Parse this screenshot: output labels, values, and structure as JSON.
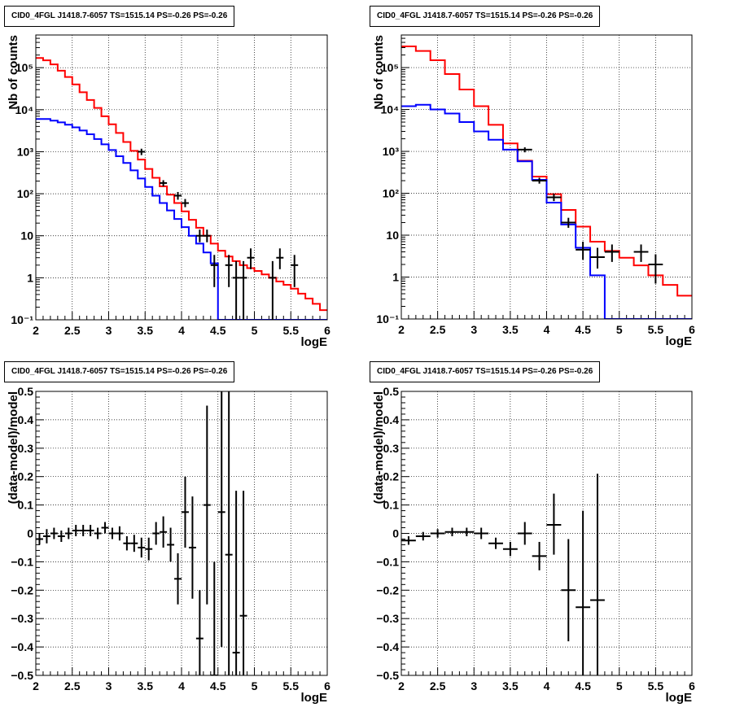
{
  "chart_data": [
    {
      "type": "step-histogram-with-errorbars",
      "title": "CID0_4FGL J1418.7-6057 TS=1515.14 PS=-0.26 PS=-0.26",
      "xlabel": "logE",
      "ylabel": "Nb of counts",
      "xlim": [
        2,
        6
      ],
      "ylim": [
        0.1,
        600000
      ],
      "yscale": "log",
      "grid": true,
      "xticks": [
        "2",
        "2.5",
        "3",
        "3.5",
        "4",
        "4.5",
        "5",
        "5.5",
        "6"
      ],
      "yticks": [
        {
          "v": 0.1,
          "l": "10⁻¹"
        },
        {
          "v": 1,
          "l": "1"
        },
        {
          "v": 10,
          "l": "10"
        },
        {
          "v": 100,
          "l": "10²"
        },
        {
          "v": 1000,
          "l": "10³"
        },
        {
          "v": 10000,
          "l": "10⁴"
        },
        {
          "v": 100000,
          "l": "10⁵"
        }
      ],
      "bin_edges": [
        2.0,
        2.1,
        2.2,
        2.3,
        2.4,
        2.5,
        2.6,
        2.7,
        2.8,
        2.9,
        3.0,
        3.1,
        3.2,
        3.3,
        3.4,
        3.5,
        3.6,
        3.7,
        3.8,
        3.9,
        4.0,
        4.1,
        4.2,
        4.3,
        4.4,
        4.5,
        4.6,
        4.7,
        4.8,
        4.9,
        5.0,
        5.1,
        5.2,
        5.3,
        5.4,
        5.5,
        5.6,
        5.7,
        5.8,
        5.9,
        6.0
      ],
      "series": [
        {
          "color": "#ff0000",
          "values": [
            170000,
            150000,
            120000,
            85000,
            60000,
            40000,
            26000,
            17000,
            11000,
            7000,
            4500,
            2800,
            1700,
            1050,
            650,
            390,
            240,
            150,
            95,
            60,
            38,
            24,
            15.5,
            10,
            6.5,
            4.4,
            3.2,
            2.5,
            2.0,
            1.7,
            1.45,
            1.2,
            1.0,
            0.82,
            0.68,
            0.55,
            0.42,
            0.32,
            0.24,
            0.17
          ]
        },
        {
          "color": "#0000ff",
          "values": [
            6000,
            6000,
            5500,
            5000,
            4400,
            3800,
            3200,
            2600,
            2000,
            1500,
            1100,
            780,
            540,
            360,
            230,
            145,
            90,
            60,
            40,
            25,
            16,
            10,
            6.5,
            4,
            2.2,
            0.05,
            0.05,
            0.05,
            0.05,
            0.05,
            0.05,
            0.05,
            0.05,
            0.05,
            0.05,
            0.05,
            0.05,
            0.05,
            0.05,
            0.05
          ]
        }
      ],
      "points": [
        {
          "x": 3.45,
          "y": 1000,
          "lo": 830,
          "hi": 1180
        },
        {
          "x": 3.75,
          "y": 180,
          "lo": 150,
          "hi": 210
        },
        {
          "x": 3.95,
          "y": 90,
          "lo": 72,
          "hi": 110
        },
        {
          "x": 4.05,
          "y": 60,
          "lo": 48,
          "hi": 75
        },
        {
          "x": 4.25,
          "y": 10,
          "lo": 7,
          "hi": 14
        },
        {
          "x": 4.35,
          "y": 10,
          "lo": 7,
          "hi": 14
        },
        {
          "x": 4.45,
          "y": 2,
          "lo": 0.6,
          "hi": 3.5
        },
        {
          "x": 4.65,
          "y": 2,
          "lo": 0.6,
          "hi": 3.5
        },
        {
          "x": 4.75,
          "y": 1,
          "lo": 0.05,
          "hi": 2.5
        },
        {
          "x": 4.85,
          "y": 1,
          "lo": 0.05,
          "hi": 2.5
        },
        {
          "x": 4.95,
          "y": 3,
          "lo": 1.6,
          "hi": 5
        },
        {
          "x": 5.25,
          "y": 1,
          "lo": 0.05,
          "hi": 2.5
        },
        {
          "x": 5.35,
          "y": 3,
          "lo": 1.6,
          "hi": 5
        },
        {
          "x": 5.55,
          "y": 2,
          "lo": 0.6,
          "hi": 3.5
        }
      ],
      "point_halfwidth": 0.05
    },
    {
      "type": "step-histogram-with-errorbars",
      "title": "CID0_4FGL J1418.7-6057 TS=1515.14 PS=-0.26 PS=-0.26",
      "xlabel": "logE",
      "ylabel": "Nb of counts",
      "xlim": [
        2,
        6
      ],
      "ylim": [
        0.1,
        600000
      ],
      "yscale": "log",
      "grid": true,
      "xticks": [
        "2",
        "2.5",
        "3",
        "3.5",
        "4",
        "4.5",
        "5",
        "5.5",
        "6"
      ],
      "yticks": [
        {
          "v": 0.1,
          "l": "10⁻¹"
        },
        {
          "v": 1,
          "l": "1"
        },
        {
          "v": 10,
          "l": "10"
        },
        {
          "v": 100,
          "l": "10²"
        },
        {
          "v": 1000,
          "l": "10³"
        },
        {
          "v": 10000,
          "l": "10⁴"
        },
        {
          "v": 100000,
          "l": "10⁵"
        }
      ],
      "bin_edges": [
        2.0,
        2.2,
        2.4,
        2.6,
        2.8,
        3.0,
        3.2,
        3.4,
        3.6,
        3.8,
        4.0,
        4.2,
        4.4,
        4.6,
        4.8,
        5.0,
        5.2,
        5.4,
        5.6,
        5.8,
        6.0
      ],
      "series": [
        {
          "color": "#ff0000",
          "values": [
            320000,
            250000,
            150000,
            70000,
            30000,
            12000,
            4300,
            1550,
            600,
            250,
            95,
            40,
            16,
            7,
            4.2,
            2.9,
            1.9,
            1.1,
            0.65,
            0.36
          ]
        },
        {
          "color": "#0000ff",
          "values": [
            12000,
            13000,
            10000,
            8000,
            5000,
            3000,
            1900,
            1100,
            580,
            210,
            60,
            18,
            5,
            1.1,
            0.05,
            0.05,
            0.05,
            0.05,
            0.05,
            0.05
          ]
        }
      ],
      "points": [
        {
          "x": 3.7,
          "y": 1100,
          "lo": 950,
          "hi": 1250
        },
        {
          "x": 3.9,
          "y": 200,
          "lo": 170,
          "hi": 235
        },
        {
          "x": 4.1,
          "y": 80,
          "lo": 65,
          "hi": 98
        },
        {
          "x": 4.3,
          "y": 20,
          "lo": 15,
          "hi": 26
        },
        {
          "x": 4.5,
          "y": 4.5,
          "lo": 2.6,
          "hi": 7
        },
        {
          "x": 4.7,
          "y": 3,
          "lo": 1.6,
          "hi": 5
        },
        {
          "x": 4.9,
          "y": 4,
          "lo": 2.3,
          "hi": 6
        },
        {
          "x": 5.3,
          "y": 4,
          "lo": 2.3,
          "hi": 6
        },
        {
          "x": 5.5,
          "y": 2,
          "lo": 0.7,
          "hi": 3.5
        }
      ],
      "point_halfwidth": 0.1
    },
    {
      "type": "scatter-with-errorbars",
      "title": "CID0_4FGL J1418.7-6057 TS=1515.14 PS=-0.26 PS=-0.26",
      "xlabel": "logE",
      "ylabel": "(data-model)/model",
      "xlim": [
        2,
        6
      ],
      "ylim": [
        -0.5,
        0.5
      ],
      "yscale": "linear",
      "grid": true,
      "xticks": [
        "2",
        "2.5",
        "3",
        "3.5",
        "4",
        "4.5",
        "5",
        "5.5",
        "6"
      ],
      "yticks": [
        {
          "v": -0.5,
          "l": "−0.5"
        },
        {
          "v": -0.4,
          "l": "−0.4"
        },
        {
          "v": -0.3,
          "l": "−0.3"
        },
        {
          "v": -0.2,
          "l": "−0.2"
        },
        {
          "v": -0.1,
          "l": "−0.1"
        },
        {
          "v": 0,
          "l": "0"
        },
        {
          "v": 0.1,
          "l": "0.1"
        },
        {
          "v": 0.2,
          "l": "0.2"
        },
        {
          "v": 0.3,
          "l": "0.3"
        },
        {
          "v": 0.4,
          "l": "0.4"
        },
        {
          "v": 0.5,
          "l": "0.5"
        }
      ],
      "point_halfwidth": 0.05,
      "points": [
        {
          "x": 2.05,
          "y": -0.02,
          "lo": -0.04,
          "hi": 0.0
        },
        {
          "x": 2.15,
          "y": -0.01,
          "lo": -0.035,
          "hi": 0.015
        },
        {
          "x": 2.25,
          "y": 0.0,
          "lo": -0.02,
          "hi": 0.02
        },
        {
          "x": 2.35,
          "y": -0.01,
          "lo": -0.03,
          "hi": 0.01
        },
        {
          "x": 2.45,
          "y": 0.0,
          "lo": -0.02,
          "hi": 0.02
        },
        {
          "x": 2.55,
          "y": 0.01,
          "lo": -0.01,
          "hi": 0.03
        },
        {
          "x": 2.65,
          "y": 0.01,
          "lo": -0.01,
          "hi": 0.03
        },
        {
          "x": 2.75,
          "y": 0.01,
          "lo": -0.01,
          "hi": 0.03
        },
        {
          "x": 2.85,
          "y": 0.0,
          "lo": -0.02,
          "hi": 0.02
        },
        {
          "x": 2.95,
          "y": 0.02,
          "lo": 0.0,
          "hi": 0.04
        },
        {
          "x": 3.05,
          "y": 0.0,
          "lo": -0.02,
          "hi": 0.02
        },
        {
          "x": 3.15,
          "y": 0.0,
          "lo": -0.025,
          "hi": 0.025
        },
        {
          "x": 3.25,
          "y": -0.035,
          "lo": -0.06,
          "hi": -0.01
        },
        {
          "x": 3.35,
          "y": -0.035,
          "lo": -0.065,
          "hi": -0.005
        },
        {
          "x": 3.45,
          "y": -0.05,
          "lo": -0.085,
          "hi": -0.015
        },
        {
          "x": 3.55,
          "y": -0.055,
          "lo": -0.095,
          "hi": -0.015
        },
        {
          "x": 3.65,
          "y": 0.0,
          "lo": -0.04,
          "hi": 0.04
        },
        {
          "x": 3.75,
          "y": 0.005,
          "lo": -0.05,
          "hi": 0.06
        },
        {
          "x": 3.85,
          "y": -0.04,
          "lo": -0.1,
          "hi": 0.02
        },
        {
          "x": 3.95,
          "y": -0.16,
          "lo": -0.25,
          "hi": -0.07
        },
        {
          "x": 4.05,
          "y": 0.075,
          "lo": -0.05,
          "hi": 0.2
        },
        {
          "x": 4.15,
          "y": -0.05,
          "lo": -0.23,
          "hi": 0.13
        },
        {
          "x": 4.25,
          "y": -0.37,
          "lo": -0.56,
          "hi": -0.2
        },
        {
          "x": 4.35,
          "y": 0.1,
          "lo": -0.25,
          "hi": 0.45
        },
        {
          "x": 4.45,
          "y": -0.5,
          "lo": -0.56,
          "hi": -0.1
        },
        {
          "x": 4.55,
          "y": 0.075,
          "lo": -0.4,
          "hi": 0.56
        },
        {
          "x": 4.65,
          "y": -0.075,
          "lo": -0.56,
          "hi": 0.56
        },
        {
          "x": 4.75,
          "y": -0.42,
          "lo": -0.56,
          "hi": 0.15
        },
        {
          "x": 4.85,
          "y": -0.29,
          "lo": -0.56,
          "hi": 0.15
        }
      ]
    },
    {
      "type": "scatter-with-errorbars",
      "title": "CID0_4FGL J1418.7-6057 TS=1515.14 PS=-0.26 PS=-0.26",
      "xlabel": "logE",
      "ylabel": "(data-model)/model",
      "xlim": [
        2,
        6
      ],
      "ylim": [
        -0.5,
        0.5
      ],
      "yscale": "linear",
      "grid": true,
      "xticks": [
        "2",
        "2.5",
        "3",
        "3.5",
        "4",
        "4.5",
        "5",
        "5.5",
        "6"
      ],
      "yticks": [
        {
          "v": -0.5,
          "l": "−0.5"
        },
        {
          "v": -0.4,
          "l": "−0.4"
        },
        {
          "v": -0.3,
          "l": "−0.3"
        },
        {
          "v": -0.2,
          "l": "−0.2"
        },
        {
          "v": -0.1,
          "l": "−0.1"
        },
        {
          "v": 0,
          "l": "0"
        },
        {
          "v": 0.1,
          "l": "0.1"
        },
        {
          "v": 0.2,
          "l": "0.2"
        },
        {
          "v": 0.3,
          "l": "0.3"
        },
        {
          "v": 0.4,
          "l": "0.4"
        },
        {
          "v": 0.5,
          "l": "0.5"
        }
      ],
      "point_halfwidth": 0.1,
      "points": [
        {
          "x": 2.1,
          "y": -0.025,
          "lo": -0.04,
          "hi": -0.01
        },
        {
          "x": 2.3,
          "y": -0.01,
          "lo": -0.025,
          "hi": 0.005
        },
        {
          "x": 2.5,
          "y": 0.0,
          "lo": -0.015,
          "hi": 0.015
        },
        {
          "x": 2.7,
          "y": 0.005,
          "lo": -0.01,
          "hi": 0.02
        },
        {
          "x": 2.9,
          "y": 0.005,
          "lo": -0.01,
          "hi": 0.02
        },
        {
          "x": 3.1,
          "y": 0.0,
          "lo": -0.02,
          "hi": 0.02
        },
        {
          "x": 3.3,
          "y": -0.035,
          "lo": -0.055,
          "hi": -0.015
        },
        {
          "x": 3.5,
          "y": -0.055,
          "lo": -0.08,
          "hi": -0.03
        },
        {
          "x": 3.7,
          "y": 0.0,
          "lo": -0.04,
          "hi": 0.04
        },
        {
          "x": 3.9,
          "y": -0.08,
          "lo": -0.13,
          "hi": -0.03
        },
        {
          "x": 4.1,
          "y": 0.03,
          "lo": -0.075,
          "hi": 0.14
        },
        {
          "x": 4.3,
          "y": -0.2,
          "lo": -0.38,
          "hi": -0.02
        },
        {
          "x": 4.5,
          "y": -0.26,
          "lo": -0.56,
          "hi": 0.08
        },
        {
          "x": 4.7,
          "y": -0.235,
          "lo": -0.56,
          "hi": 0.21
        }
      ]
    }
  ]
}
